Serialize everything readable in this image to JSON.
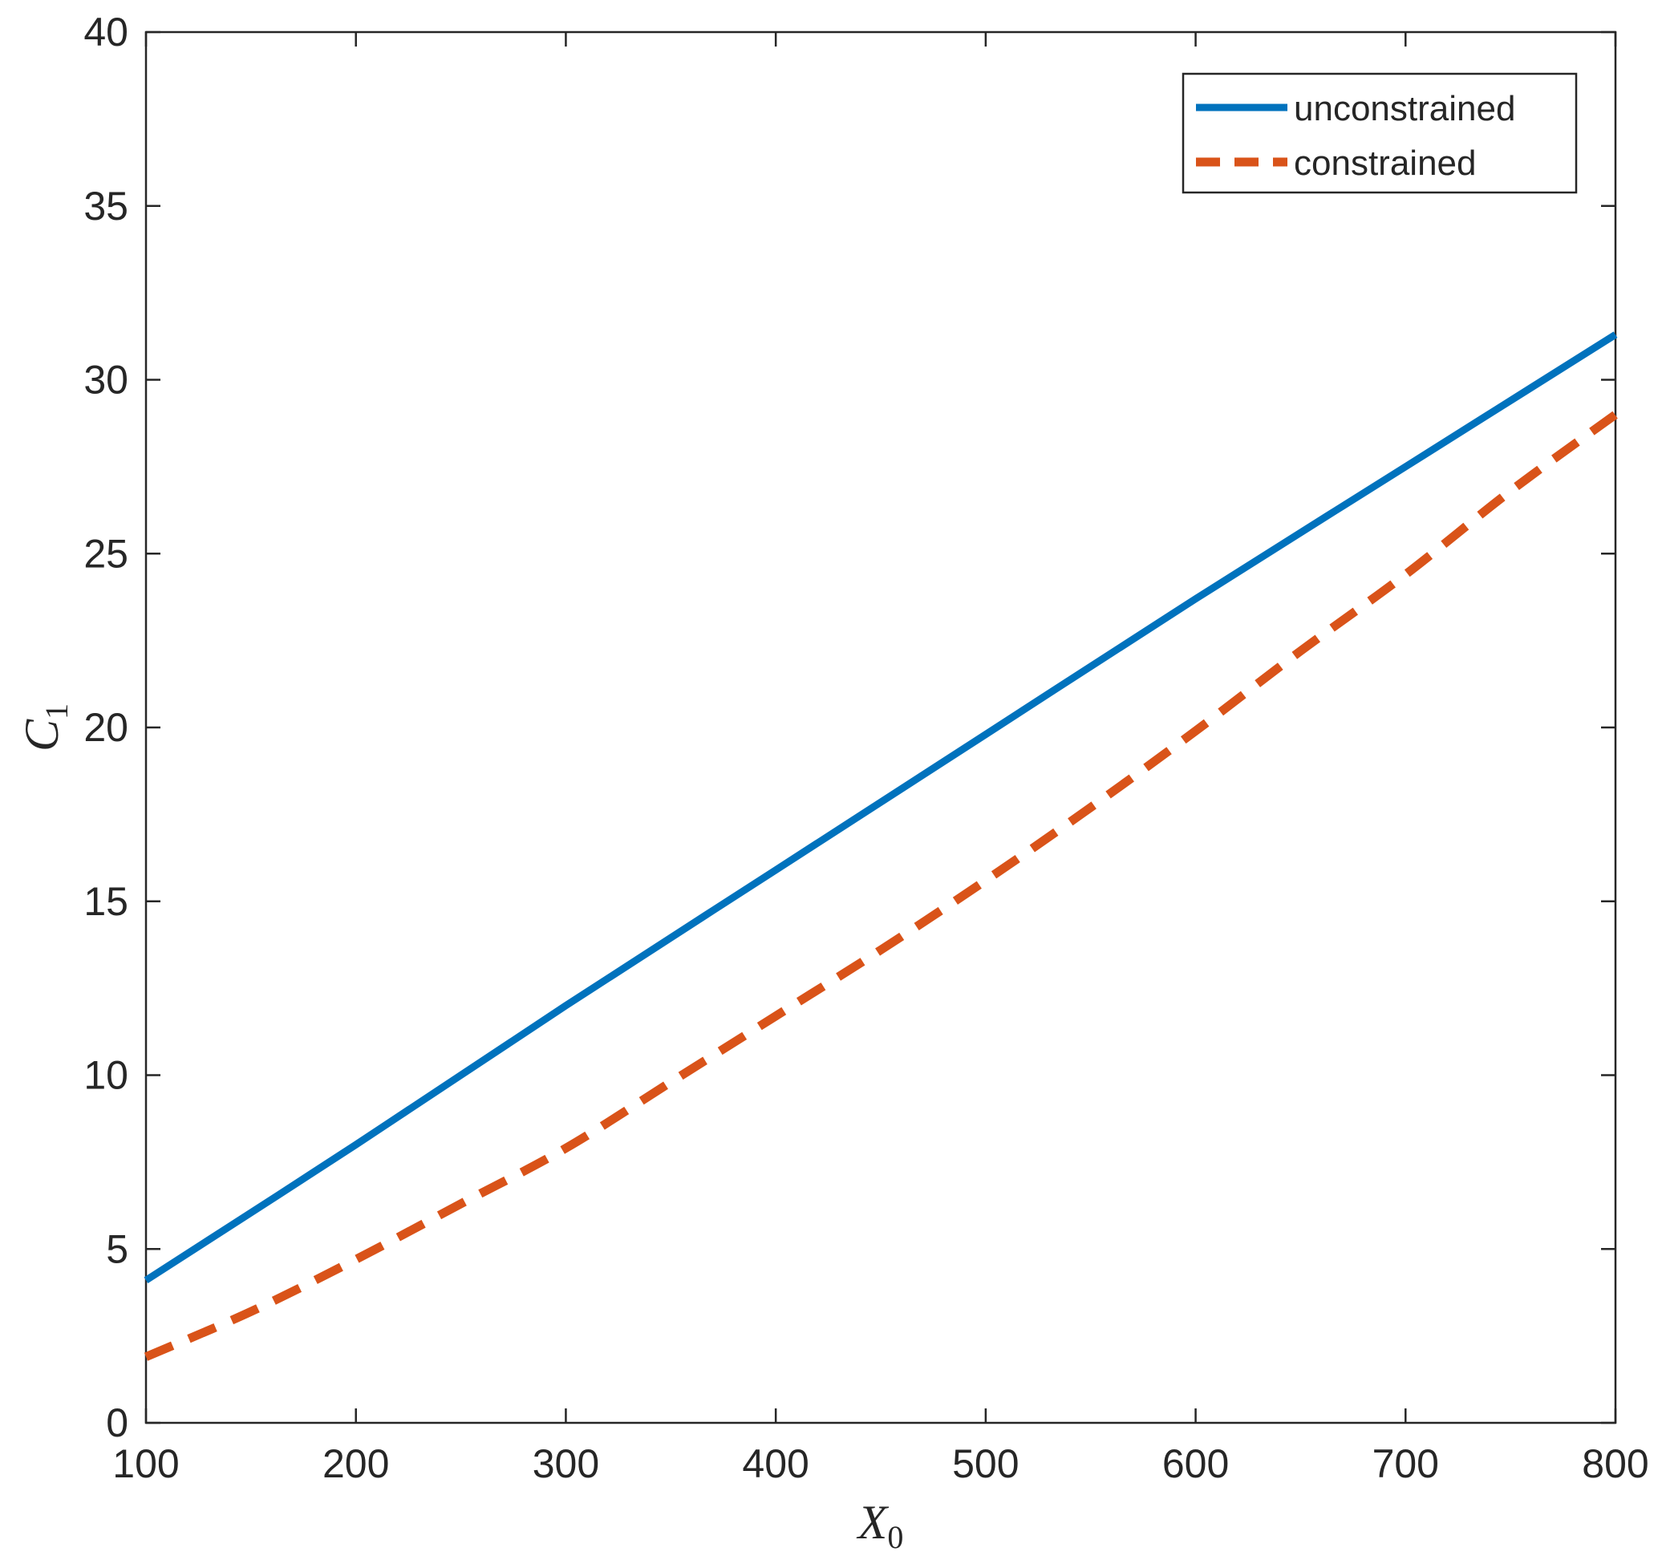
{
  "chart_data": {
    "type": "line",
    "title": "",
    "xlabel": {
      "symbol": "X",
      "subscript": "0"
    },
    "ylabel": {
      "symbol": "C",
      "subscript": "1"
    },
    "xlim": [
      100,
      800
    ],
    "ylim": [
      0,
      40
    ],
    "xticks": [
      100,
      200,
      300,
      400,
      500,
      600,
      700,
      800
    ],
    "yticks": [
      0,
      5,
      10,
      15,
      20,
      25,
      30,
      35,
      40
    ],
    "grid": false,
    "legend_position": "top-right",
    "series": [
      {
        "name": "unconstrained",
        "style": "solid",
        "color": "#0072BD",
        "x": [
          100,
          200,
          300,
          400,
          500,
          600,
          700,
          800
        ],
        "y": [
          4.1,
          8.0,
          12.0,
          15.9,
          19.8,
          23.7,
          27.5,
          31.3
        ]
      },
      {
        "name": "constrained",
        "style": "dashed",
        "color": "#D95319",
        "x": [
          100,
          150,
          200,
          250,
          300,
          350,
          400,
          450,
          500,
          550,
          600,
          650,
          700,
          750,
          800
        ],
        "y": [
          1.9,
          3.2,
          4.7,
          6.3,
          7.9,
          9.8,
          11.7,
          13.6,
          15.6,
          17.7,
          19.9,
          22.2,
          24.4,
          26.8,
          29.0
        ]
      }
    ]
  }
}
